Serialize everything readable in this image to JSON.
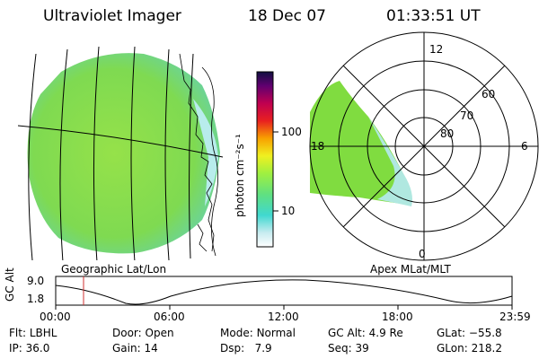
{
  "header": {
    "instrument": "Ultraviolet Imager",
    "date": "18 Dec 07",
    "time": "01:33:51 UT"
  },
  "geo_panel": {
    "label": "Geographic Lat/Lon"
  },
  "polar_panel": {
    "label": "Apex MLat/MLT",
    "mlt_labels": [
      "12",
      "18",
      "6",
      "0"
    ],
    "lat_labels": [
      "60",
      "70",
      "80"
    ]
  },
  "colorbar": {
    "unit_label": "photon cm⁻²s⁻¹",
    "ticks": [
      "100",
      "10"
    ]
  },
  "orbit_plot": {
    "ylabel": "GC Alt",
    "ymax_label": "9.0",
    "ymin_label": "1.8",
    "x_ticks": [
      "00:00",
      "06:00",
      "12:00",
      "18:00",
      "23:59"
    ]
  },
  "footer": {
    "flt_label": "Flt:",
    "flt_value": "LBHL",
    "door_label": "Door:",
    "door_value": "Open",
    "mode_label": "Mode:",
    "mode_value": "Normal",
    "gcalt_label": "GC Alt:",
    "gcalt_value": "4.9 Re",
    "glat_label": "GLat:",
    "glat_value": "−55.8",
    "ip_label": "IP:",
    "ip_value": "36.0",
    "gain_label": "Gain:",
    "gain_value": "14",
    "dsp_label": "Dsp:",
    "dsp_value": "7.9",
    "seq_label": "Seq:",
    "seq_value": "39",
    "glon_label": "GLon:",
    "glon_value": "218.2"
  },
  "colors": {
    "aurora_main": "#7ddc3a",
    "aurora_edge": "#a8e8e0",
    "orbit_marker": "#d03030"
  }
}
